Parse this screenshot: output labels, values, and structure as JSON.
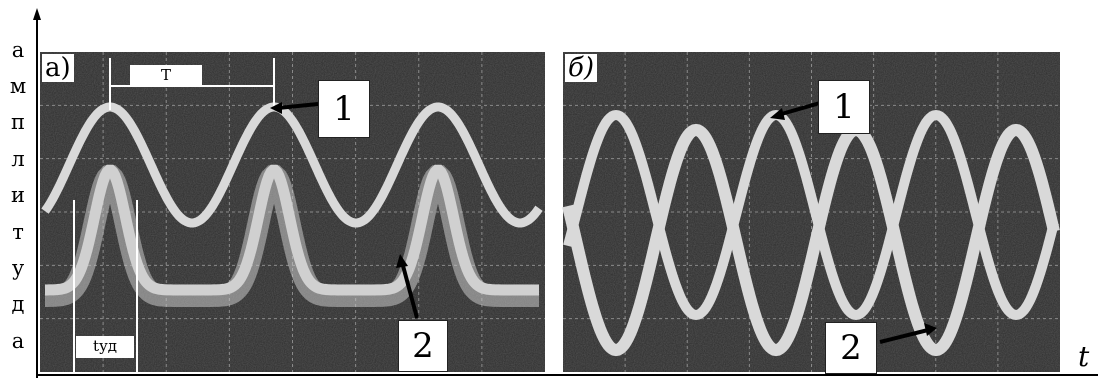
{
  "axes": {
    "y_label_letters": [
      "а",
      "м",
      "п",
      "л",
      "и",
      "т",
      "у",
      "д",
      "а"
    ],
    "x_label": "t"
  },
  "panels": [
    {
      "label": "а)",
      "curve_labels": [
        "1",
        "2"
      ],
      "period_label": "T",
      "pulse_label": "tуд"
    },
    {
      "label": "б)",
      "curve_labels": [
        "1",
        "2"
      ]
    }
  ],
  "colors": {
    "screen": "#2b2b2b",
    "trace": "#d9d9d9",
    "background": "#ffffff"
  }
}
